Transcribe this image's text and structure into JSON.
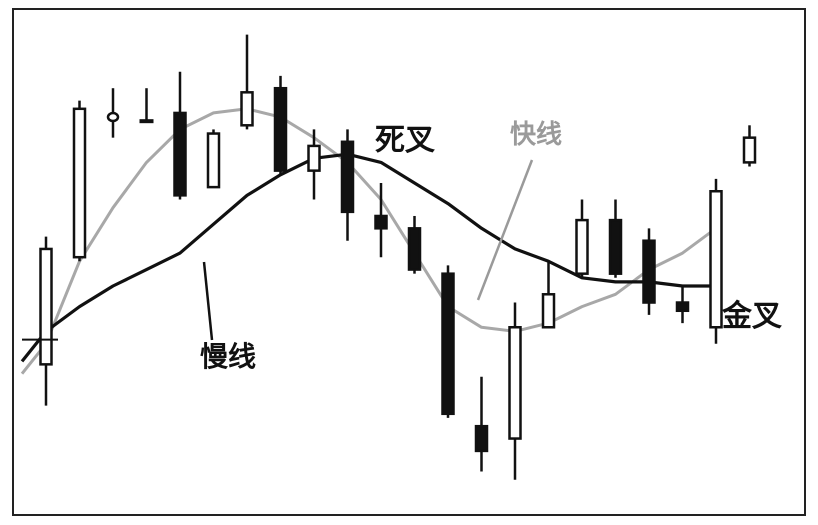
{
  "chart_data": {
    "type": "candlestick",
    "title": "",
    "xlabel": "",
    "ylabel": "",
    "ylim": [
      0,
      100
    ],
    "grid": false,
    "candles": [
      {
        "open": 30,
        "close": 58,
        "high": 61,
        "low": 20,
        "direction": "up"
      },
      {
        "open": 56,
        "close": 92,
        "high": 94,
        "low": 55,
        "direction": "up"
      },
      {
        "open": 90,
        "close": 90,
        "high": 97,
        "low": 85,
        "direction": "doji"
      },
      {
        "open": 89,
        "close": 89,
        "high": 97,
        "low": 89,
        "direction": "doji"
      },
      {
        "open": 91,
        "close": 71,
        "high": 101,
        "low": 70,
        "direction": "down"
      },
      {
        "open": 73,
        "close": 86,
        "high": 87,
        "low": 73,
        "direction": "up"
      },
      {
        "open": 88,
        "close": 96,
        "high": 110,
        "low": 87,
        "direction": "up"
      },
      {
        "open": 97,
        "close": 77,
        "high": 100,
        "low": 76,
        "direction": "down"
      },
      {
        "open": 77,
        "close": 83,
        "high": 87,
        "low": 70,
        "direction": "up"
      },
      {
        "open": 84,
        "close": 67,
        "high": 87,
        "low": 60,
        "direction": "down"
      },
      {
        "open": 66,
        "close": 63,
        "high": 74,
        "low": 56,
        "direction": "down"
      },
      {
        "open": 63,
        "close": 53,
        "high": 66,
        "low": 52,
        "direction": "down"
      },
      {
        "open": 52,
        "close": 18,
        "high": 54,
        "low": 17,
        "direction": "down"
      },
      {
        "open": 15,
        "close": 9,
        "high": 27,
        "low": 4,
        "direction": "down"
      },
      {
        "open": 12,
        "close": 39,
        "high": 45,
        "low": 2,
        "direction": "up"
      },
      {
        "open": 39,
        "close": 47,
        "high": 55,
        "low": 39,
        "direction": "up"
      },
      {
        "open": 52,
        "close": 65,
        "high": 70,
        "low": 51,
        "direction": "up"
      },
      {
        "open": 65,
        "close": 52,
        "high": 70,
        "low": 51,
        "direction": "down"
      },
      {
        "open": 60,
        "close": 45,
        "high": 63,
        "low": 42,
        "direction": "down"
      },
      {
        "open": 45,
        "close": 43,
        "high": 49,
        "low": 40,
        "direction": "down"
      },
      {
        "open": 39,
        "close": 72,
        "high": 75,
        "low": 35,
        "direction": "up"
      },
      {
        "open": 79,
        "close": 85,
        "high": 88,
        "low": 78,
        "direction": "up"
      }
    ],
    "series": [
      {
        "name": "快线",
        "values": [
          35,
          55,
          68,
          79,
          87,
          91,
          92,
          90,
          85,
          79,
          70,
          57,
          44,
          39,
          38,
          40,
          44,
          47,
          53,
          57,
          63,
          null
        ]
      },
      {
        "name": "慢线",
        "values": [
          38,
          44,
          49,
          53,
          57,
          64,
          71,
          76,
          80,
          81,
          79,
          74,
          69,
          63,
          58,
          55,
          51,
          50,
          50,
          49,
          49,
          null
        ]
      }
    ],
    "annotations": [
      {
        "text": "死叉",
        "target": "cross-down"
      },
      {
        "text": "快线",
        "target": "fast-line"
      },
      {
        "text": "慢线",
        "target": "slow-line"
      },
      {
        "text": "金叉",
        "target": "cross-up"
      }
    ]
  },
  "colors": {
    "fast_line": "#a8a8a8",
    "slow_line": "#111111",
    "candle_up_fill": "#ffffff",
    "candle_down_fill": "#111111",
    "candle_stroke": "#111111",
    "frame": "#222222"
  }
}
